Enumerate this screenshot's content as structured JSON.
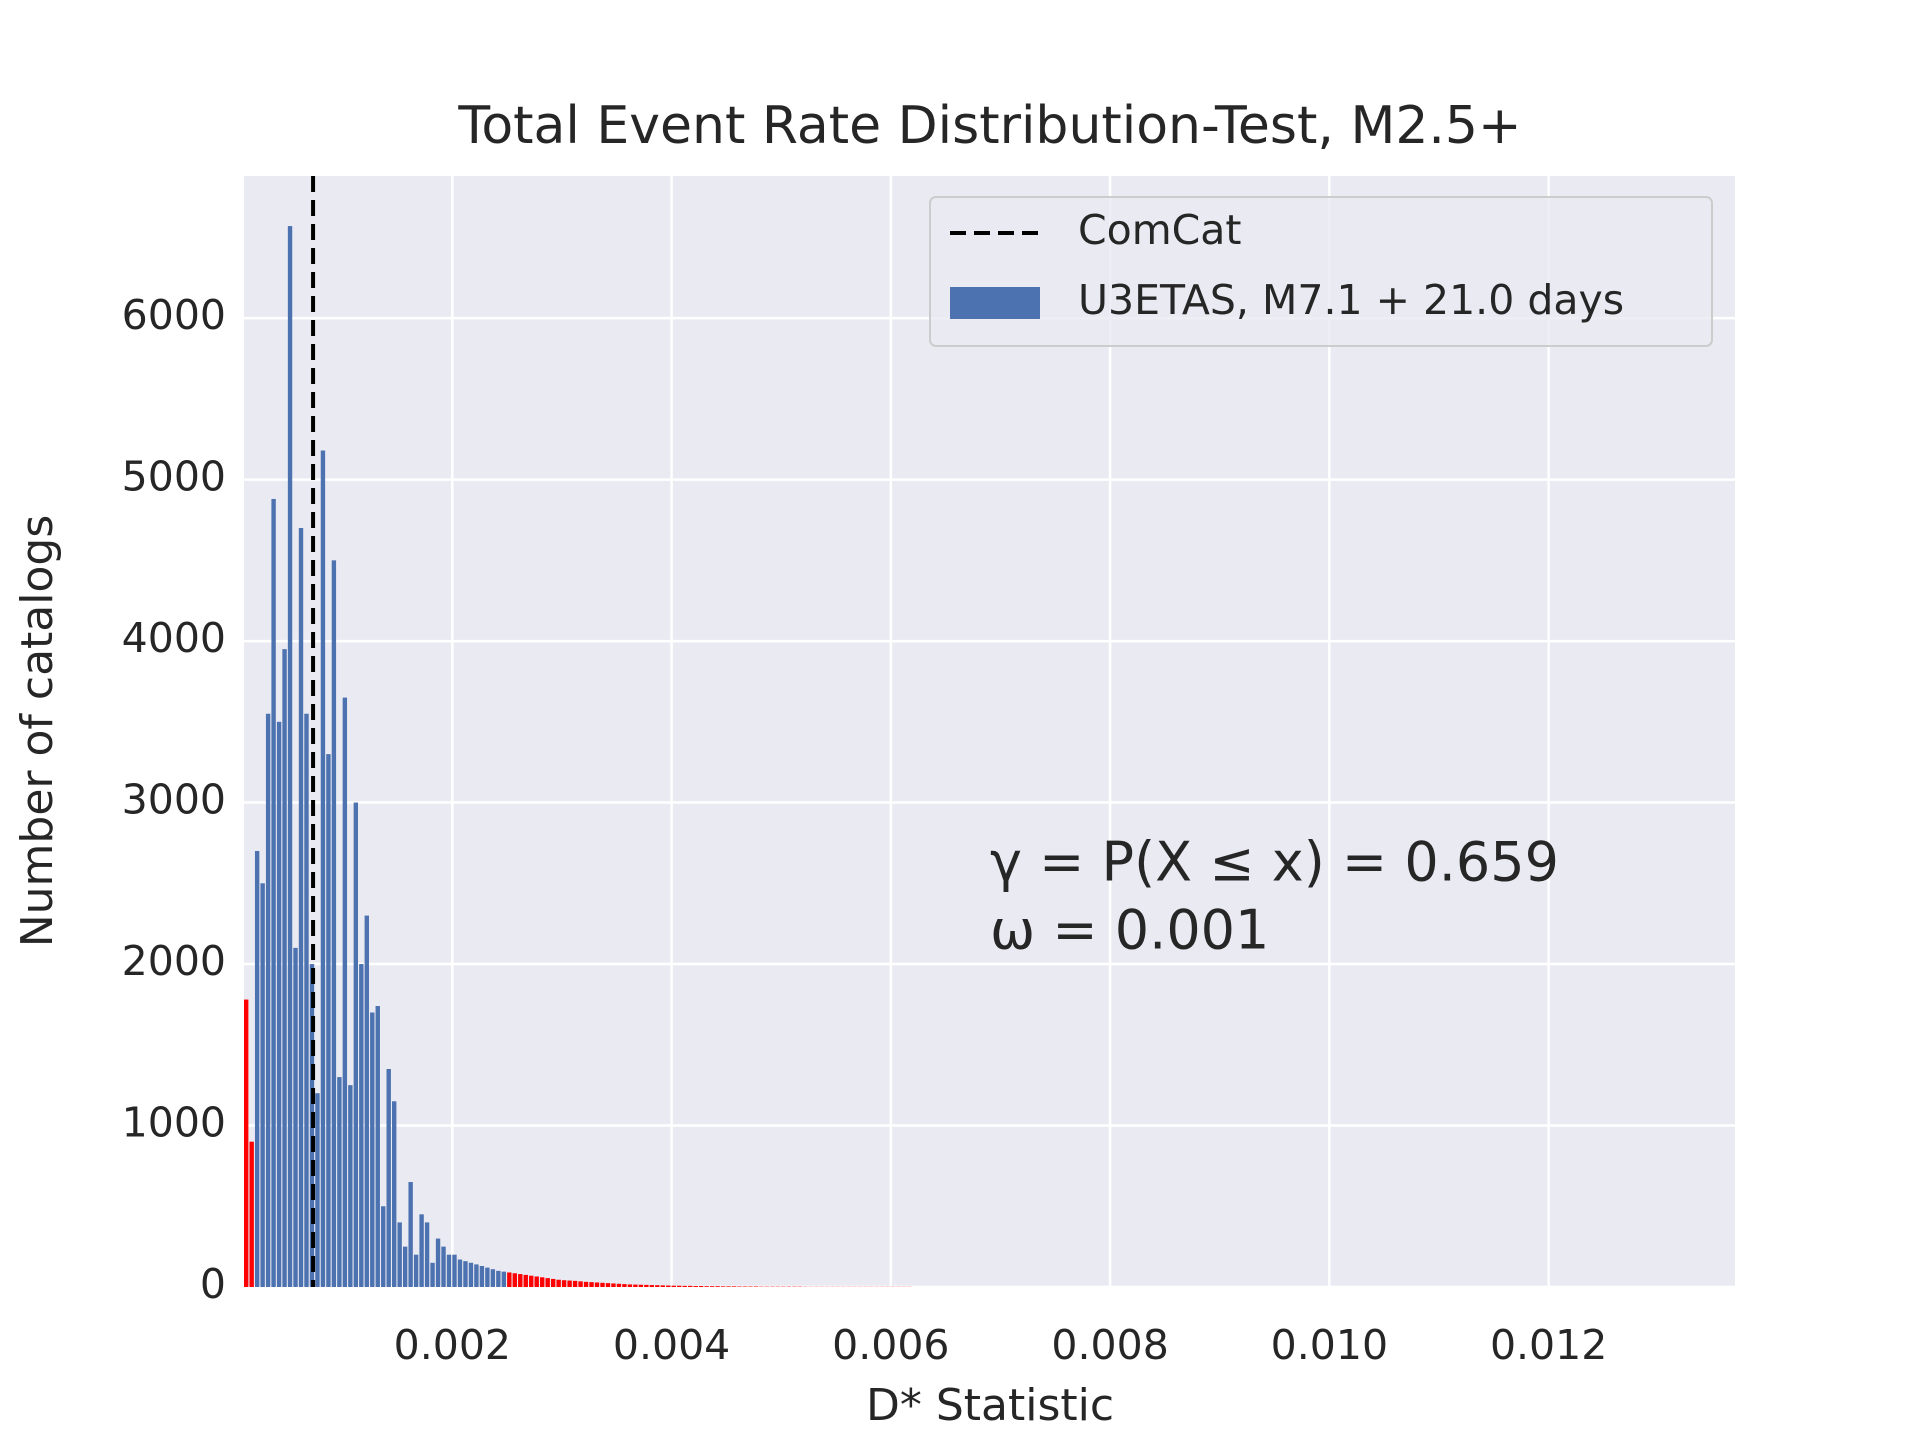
{
  "chart_data": {
    "type": "histogram",
    "title": "Total Event Rate Distribution-Test, M2.5+",
    "xlabel": "D* Statistic",
    "ylabel": "Number of catalogs",
    "bins": [
      0.0001,
      0.00015,
      0.0002,
      0.00025,
      0.0003,
      0.00035,
      0.0004,
      0.00045,
      0.0005,
      0.00055,
      0.0006,
      0.00065,
      0.0007,
      0.00075,
      0.0008,
      0.00085,
      0.0009,
      0.00095,
      0.001,
      0.00105,
      0.0011,
      0.00115,
      0.0012,
      0.00125,
      0.0013,
      0.00135,
      0.0014,
      0.00145,
      0.0015,
      0.00155,
      0.0016,
      0.00165,
      0.0017,
      0.00175,
      0.0018,
      0.00185,
      0.0019,
      0.00195,
      0.002,
      0.00205,
      0.0021,
      0.00215,
      0.0022,
      0.00225,
      0.0023,
      0.00235,
      0.0024,
      0.00245,
      0.0025,
      0.00255,
      0.0026,
      0.00265,
      0.0027,
      0.00275,
      0.0028,
      0.00285,
      0.0029,
      0.00295,
      0.003,
      0.00305,
      0.0031,
      0.00315,
      0.0032,
      0.00325,
      0.0033,
      0.00335,
      0.0034,
      0.00345,
      0.0035,
      0.00355,
      0.0036,
      0.00365,
      0.0037,
      0.00375,
      0.0038,
      0.00385,
      0.0039,
      0.00395,
      0.004,
      0.00405,
      0.0041,
      0.00415,
      0.0042,
      0.00425,
      0.0043,
      0.00435,
      0.0044,
      0.00445,
      0.0045,
      0.00455,
      0.0046,
      0.00465,
      0.0047,
      0.00475,
      0.0048,
      0.00485,
      0.0049,
      0.00495,
      0.005,
      0.00505,
      0.0051,
      0.00515,
      0.0052,
      0.00525,
      0.0053,
      0.00535,
      0.0054,
      0.00545,
      0.0055,
      0.00555,
      0.0056,
      0.00565,
      0.0057,
      0.00575,
      0.0058,
      0.00585,
      0.0059,
      0.00595,
      0.006,
      0.00605,
      0.0061,
      0.00615,
      0.0062,
      0.00625,
      0.0063,
      0.00635,
      0.0064,
      0.00645,
      0.0065,
      0.00655,
      0.0066
    ],
    "series": [
      {
        "name": "U3ETAS, M7.1 + 21.0 days",
        "color": "#4c72b0",
        "values": [
          1780,
          900,
          2700,
          2500,
          3550,
          4880,
          3500,
          3950,
          6570,
          2100,
          4700,
          3550,
          2000,
          1200,
          5180,
          3300,
          4500,
          1300,
          3650,
          1250,
          3000,
          2000,
          2300,
          1700,
          1740,
          500,
          1350,
          1150,
          400,
          250,
          650,
          200,
          450,
          400,
          150,
          300,
          250,
          200,
          200,
          170,
          160,
          150,
          140,
          130,
          120,
          110,
          100,
          95,
          90,
          85,
          80,
          75,
          70,
          65,
          60,
          55,
          50,
          45,
          42,
          40,
          38,
          35,
          32,
          30,
          28,
          26,
          24,
          22,
          20,
          18,
          16,
          15,
          14,
          13,
          12,
          11,
          10,
          9,
          8,
          8,
          7,
          7,
          6,
          6,
          5,
          5,
          5,
          4,
          4,
          4,
          3,
          3,
          3,
          3,
          2,
          2,
          2,
          2,
          2,
          2,
          2,
          2,
          1,
          1,
          1,
          1,
          1,
          1,
          1,
          1,
          1,
          1,
          1,
          1,
          1,
          1,
          1,
          1,
          1,
          1,
          1,
          1,
          0,
          0,
          0,
          0,
          0,
          0,
          0,
          0
        ],
        "bar_colors": [
          "red",
          "red",
          "#4c72b0",
          "#4c72b0",
          "#4c72b0",
          "#4c72b0",
          "#4c72b0",
          "#4c72b0",
          "#4c72b0",
          "#4c72b0",
          "#4c72b0",
          "#4c72b0",
          "#4c72b0",
          "#4c72b0",
          "#4c72b0",
          "#4c72b0",
          "#4c72b0",
          "#4c72b0",
          "#4c72b0",
          "#4c72b0",
          "#4c72b0",
          "#4c72b0",
          "#4c72b0",
          "#4c72b0",
          "#4c72b0",
          "#4c72b0",
          "#4c72b0",
          "#4c72b0",
          "#4c72b0",
          "#4c72b0",
          "#4c72b0",
          "#4c72b0",
          "#4c72b0",
          "#4c72b0",
          "#4c72b0",
          "#4c72b0",
          "#4c72b0",
          "#4c72b0",
          "#4c72b0",
          "#4c72b0",
          "#4c72b0",
          "#4c72b0",
          "#4c72b0",
          "#4c72b0",
          "#4c72b0",
          "#4c72b0",
          "#4c72b0",
          "#4c72b0",
          "red",
          "red",
          "red",
          "red",
          "red",
          "red",
          "red",
          "red",
          "red",
          "red",
          "red",
          "red",
          "red",
          "red",
          "red",
          "red",
          "red",
          "red",
          "red",
          "red",
          "red",
          "red",
          "red",
          "red",
          "red",
          "red",
          "red",
          "red",
          "red",
          "red",
          "red",
          "red",
          "red",
          "red",
          "red",
          "red",
          "red",
          "red",
          "red",
          "red",
          "red",
          "red",
          "red",
          "red",
          "red",
          "red",
          "red",
          "red",
          "red",
          "red",
          "red",
          "red",
          "red",
          "red",
          "red",
          "red",
          "red",
          "red",
          "red",
          "red",
          "red",
          "red",
          "red",
          "red",
          "red",
          "red",
          "red",
          "red",
          "red",
          "red",
          "red",
          "red",
          "red",
          "red",
          "red",
          "red",
          "red",
          "red",
          "red",
          "red",
          "red",
          "red"
        ]
      }
    ],
    "observed": {
      "name": "ComCat",
      "value": 0.00073,
      "color": "black"
    },
    "annotations": [
      "γ = P(X ≤ x) = 0.659",
      "ω = 0.001"
    ],
    "xlim": [
      0.0001,
      0.0137
    ],
    "ylim": [
      0,
      6880
    ],
    "xticks": [
      0.002,
      0.004,
      0.006,
      0.008,
      {
        "value": 0.01,
        "label": "0.010"
      },
      0.012
    ],
    "yticks": [
      0,
      1000,
      2000,
      3000,
      4000,
      5000,
      6000
    ],
    "grid": true,
    "legend": "upper right"
  }
}
